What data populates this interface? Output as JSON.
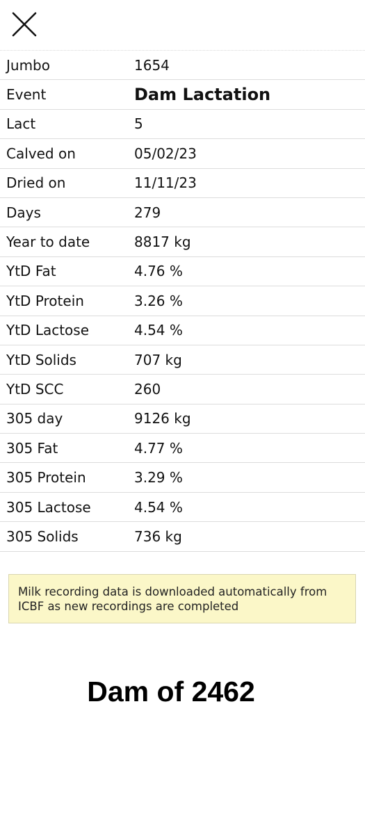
{
  "header": {
    "close_icon": "close-icon"
  },
  "details": [
    {
      "label": "Jumbo",
      "value": "1654"
    },
    {
      "label": "Event",
      "value": "Dam Lactation"
    },
    {
      "label": "Lact",
      "value": "5"
    },
    {
      "label": "Calved on",
      "value": "05/02/23"
    },
    {
      "label": "Dried on",
      "value": "11/11/23"
    },
    {
      "label": "Days",
      "value": "279"
    },
    {
      "label": "Year to date",
      "value": "8817 kg"
    },
    {
      "label": "YtD Fat",
      "value": "4.76 %"
    },
    {
      "label": "YtD Protein",
      "value": "3.26 %"
    },
    {
      "label": "YtD Lactose",
      "value": "4.54 %"
    },
    {
      "label": "YtD Solids",
      "value": "707 kg"
    },
    {
      "label": "YtD SCC",
      "value": "260"
    },
    {
      "label": "305 day",
      "value": "9126 kg"
    },
    {
      "label": "305 Fat",
      "value": "4.77 %"
    },
    {
      "label": "305 Protein",
      "value": "3.29 %"
    },
    {
      "label": "305 Lactose",
      "value": "4.54 %"
    },
    {
      "label": "305 Solids",
      "value": "736 kg"
    }
  ],
  "info_note": "Milk recording data is downloaded automatically from ICBF as new recordings are completed",
  "footer_title": "Dam of 2462",
  "colors": {
    "info_background": "#fbf7c8",
    "row_divider": "#dcdcdc",
    "text": "#111111"
  }
}
